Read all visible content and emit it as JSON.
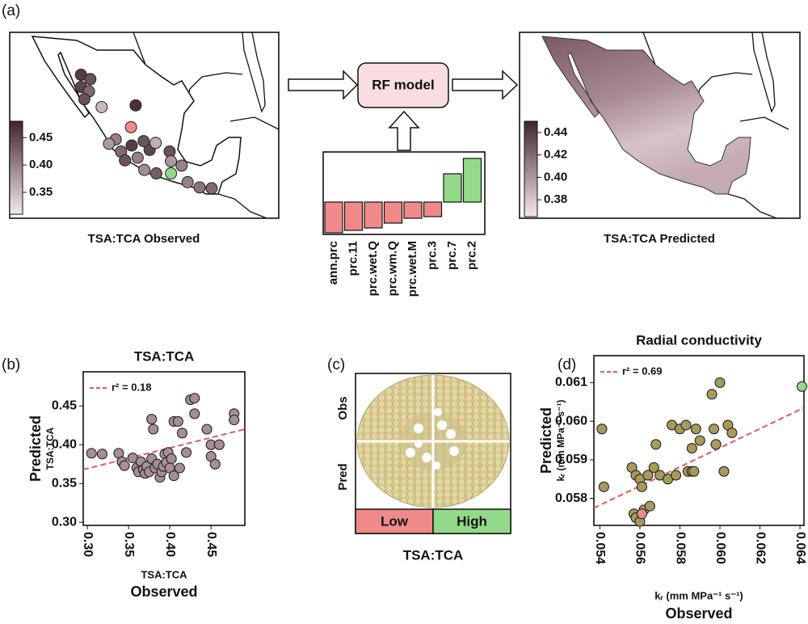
{
  "panel_labels": [
    "(a)",
    "(b)",
    "(c)",
    "(d)"
  ],
  "map_observed": {
    "title": "TSA:TCA Observed",
    "colorbar": {
      "lim": [
        0.31,
        0.48
      ],
      "ticks": [
        0.35,
        {
          "value": 0.4,
          "label": "0.40"
        },
        0.45
      ]
    },
    "sites": {
      "lon": [
        -109.7,
        -108.3,
        -109.7,
        -108.5,
        -109.2,
        -106.6,
        -101.5,
        -102.1,
        -104.5,
        -105.5,
        -103.7,
        -103.1,
        -101.2,
        -99.4,
        -98.5,
        -96.4,
        -96.2,
        -93.7,
        -91.9,
        -90.1,
        -98.4,
        -100.2,
        -100.3,
        -94.6
      ],
      "lat": [
        28.1,
        27.6,
        26.7,
        26.2,
        25.3,
        24.4,
        24.6,
        20.0,
        20.7,
        20.2,
        19.3,
        18.3,
        18.6,
        19.5,
        20.3,
        19.3,
        18.2,
        15.8,
        15.2,
        15.1,
        16.8,
        17.2,
        20.5,
        17.7
      ],
      "values": [
        0.46,
        0.44,
        0.45,
        0.42,
        0.44,
        0.35,
        0.47,
        0.46,
        0.4,
        0.38,
        0.42,
        0.44,
        0.4,
        0.45,
        0.36,
        0.44,
        0.38,
        0.4,
        0.41,
        0.42,
        0.43,
        0.39,
        0.44,
        0.4
      ]
    },
    "highlighted_sites": [
      {
        "lon": -102.2,
        "lat": 22.1,
        "value": 0.37,
        "color": "#f08a8a"
      },
      {
        "lon": -96.2,
        "lat": 16.8,
        "value": 0.38,
        "color": "#93d98a"
      }
    ]
  },
  "model": {
    "label": "RF model"
  },
  "map_predicted": {
    "title": "TSA:TCA Predicted",
    "colorbar": {
      "lim": [
        0.365,
        0.45
      ],
      "ticks": [
        0.38,
        {
          "value": 0.4,
          "label": "0.40"
        },
        0.42,
        0.44
      ]
    }
  },
  "chart_data": [
    {
      "type": "bar",
      "categories": [
        "ann.prc",
        "prc.11",
        "prc.wet.Q",
        "prc.wm.Q",
        "prc.wet.M",
        "prc.3",
        "prc.7",
        "prc.2"
      ],
      "values": [
        -0.38,
        -0.35,
        -0.32,
        -0.26,
        -0.2,
        -0.18,
        0.35,
        0.54
      ],
      "negative_color": "#f08a8a",
      "positive_color": "#93d98a"
    },
    {
      "type": "scatter",
      "title": "TSA:TCA",
      "ylabel": [
        "Predicted",
        "TSA:TCA"
      ],
      "xlabel": [
        "TSA:TCA",
        "Observed"
      ],
      "xlim": [
        0.295,
        0.491
      ],
      "ylim": [
        0.296,
        0.494
      ],
      "xticks": [
        {
          "value": 0.3,
          "label": "0.30"
        },
        0.35,
        {
          "value": 0.4,
          "label": "0.40"
        },
        0.45
      ],
      "yticks": [
        {
          "value": 0.3,
          "label": "0.30"
        },
        0.35,
        {
          "value": 0.4,
          "label": "0.40"
        },
        0.45
      ],
      "series": [
        {
          "color": "#a58e97",
          "x": [
            0.305,
            0.318,
            0.338,
            0.342,
            0.345,
            0.355,
            0.36,
            0.362,
            0.365,
            0.368,
            0.37,
            0.372,
            0.375,
            0.378,
            0.378,
            0.38,
            0.382,
            0.385,
            0.388,
            0.39,
            0.392,
            0.394,
            0.396,
            0.398,
            0.4,
            0.402,
            0.405,
            0.405,
            0.41,
            0.412,
            0.415,
            0.42,
            0.425,
            0.43,
            0.43,
            0.445,
            0.45,
            0.45,
            0.455,
            0.46,
            0.478,
            0.478
          ],
          "values": [
            0.389,
            0.388,
            0.389,
            0.378,
            0.373,
            0.383,
            0.37,
            0.365,
            0.378,
            0.368,
            0.363,
            0.372,
            0.365,
            0.382,
            0.433,
            0.42,
            0.37,
            0.375,
            0.358,
            0.365,
            0.372,
            0.388,
            0.377,
            0.39,
            0.37,
            0.382,
            0.36,
            0.43,
            0.43,
            0.37,
            0.415,
            0.39,
            0.458,
            0.46,
            0.44,
            0.42,
            0.4,
            0.385,
            0.375,
            0.4,
            0.44,
            0.432
          ]
        }
      ],
      "trend": {
        "name": "r² = 0.18",
        "color": "#e05a5a",
        "x": [
          0.295,
          0.491
        ],
        "values": [
          0.368,
          0.42
        ]
      }
    },
    {
      "type": "scatter",
      "title": "Radial conductivity",
      "ylabel": [
        "Predicted",
        "kᵣ (mm MPa⁻¹ s⁻¹)"
      ],
      "xlabel": [
        "kᵣ (mm MPa⁻¹ s⁻¹)",
        "Observed"
      ],
      "xlim": [
        0.0537,
        0.0642
      ],
      "ylim": [
        0.0573,
        0.0617
      ],
      "xticks": [
        0.054,
        0.056,
        0.058,
        {
          "value": 0.06,
          "label": "0.060"
        },
        0.062,
        0.064
      ],
      "yticks": [
        0.058,
        0.059,
        {
          "value": 0.06,
          "label": "0.060"
        },
        0.061
      ],
      "series": [
        {
          "color": "#a89a5c",
          "x": [
            0.0541,
            0.0542,
            0.0556,
            0.0558,
            0.0557,
            0.0558,
            0.056,
            0.0561,
            0.056,
            0.0562,
            0.0564,
            0.0565,
            0.0567,
            0.0568,
            0.057,
            0.0574,
            0.0576,
            0.0578,
            0.058,
            0.0583,
            0.0584,
            0.0586,
            0.0586,
            0.0587,
            0.0588,
            0.059,
            0.0596,
            0.0597,
            0.0598,
            0.06,
            0.0602,
            0.0604,
            0.0606
          ],
          "values": [
            0.0598,
            0.0583,
            0.0588,
            0.0586,
            0.0576,
            0.0575,
            0.0585,
            0.0583,
            0.0574,
            0.0577,
            0.0586,
            0.0578,
            0.0588,
            0.0594,
            0.0586,
            0.0585,
            0.0599,
            0.0586,
            0.0598,
            0.0599,
            0.0587,
            0.0587,
            0.0593,
            0.0587,
            0.0598,
            0.0595,
            0.0607,
            0.0598,
            0.0594,
            0.061,
            0.0587,
            0.0599,
            0.0597
          ]
        },
        {
          "color": "#f08a8a",
          "x": [
            0.0561
          ],
          "values": [
            0.0576
          ]
        },
        {
          "color": "#93d98a",
          "x": [
            0.0641
          ],
          "values": [
            0.0609
          ]
        }
      ],
      "trend": {
        "name": "r² = 0.69",
        "color": "#e05a5a",
        "x": [
          0.0537,
          0.0642
        ],
        "values": [
          0.05775,
          0.06035
        ]
      }
    }
  ],
  "section_c": {
    "row_labels": [
      "Obs",
      "Pred"
    ],
    "legend": [
      "Low",
      "High"
    ],
    "legend_colors": [
      "#f08a8a",
      "#93d98a"
    ],
    "xlabel": "TSA:TCA"
  }
}
